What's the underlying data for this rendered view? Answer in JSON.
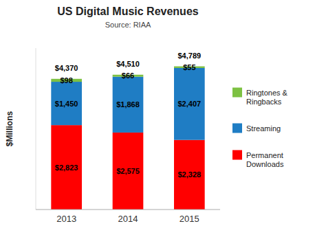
{
  "chart_data": {
    "type": "bar",
    "stacked": true,
    "title": "US Digital Music Revenues",
    "subtitle": "Source: RIAA",
    "y_label": "$Millions",
    "categories": [
      "2013",
      "2014",
      "2015"
    ],
    "series": [
      {
        "name": "Permanent\nDownloads",
        "color": "#FF0000",
        "values": [
          2823,
          2575,
          2328
        ],
        "value_labels": [
          "$2,823",
          "$2,575",
          "$2,328"
        ]
      },
      {
        "name": "Streaming",
        "color": "#1F7DC4",
        "values": [
          1450,
          1868,
          2407
        ],
        "value_labels": [
          "$1,450",
          "$1,868",
          "$2,407"
        ]
      },
      {
        "name": "Ringtones &\nRingbacks",
        "color": "#7DC142",
        "values": [
          98,
          66,
          55
        ],
        "value_labels": [
          "$98",
          "$66",
          "$55"
        ]
      }
    ],
    "totals": {
      "values": [
        4370,
        4510,
        4789
      ],
      "value_labels": [
        "$4,370",
        "$4,510",
        "$4,789"
      ]
    },
    "ylim": [
      0,
      5400
    ],
    "data_labels": true,
    "tick_labels": "x",
    "grid": false,
    "legend": "right"
  }
}
